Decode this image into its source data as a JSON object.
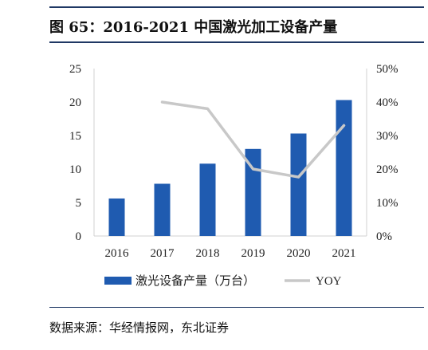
{
  "figure": {
    "title": "图 65：2016-2021 中国激光加工设备产量",
    "source": "数据来源：华经情报网，东北证券"
  },
  "colors": {
    "bar": "#1f5bb0",
    "line": "#c8c8c8",
    "axis": "#d0d0d0",
    "rule": "#1f3864"
  },
  "chart_data": {
    "type": "bar",
    "categories": [
      "2016",
      "2017",
      "2018",
      "2019",
      "2020",
      "2021"
    ],
    "series": [
      {
        "name": "激光设备产量（万台）",
        "type": "bar",
        "axis": "left",
        "values": [
          5.6,
          7.8,
          10.8,
          13.0,
          15.3,
          20.3
        ]
      },
      {
        "name": "YOY",
        "type": "line",
        "axis": "right",
        "values": [
          null,
          40.0,
          38.0,
          20.0,
          17.6,
          33.0
        ]
      }
    ],
    "y_left": {
      "min": 0,
      "max": 25,
      "ticks": [
        "0",
        "5",
        "10",
        "15",
        "20",
        "25"
      ]
    },
    "y_right": {
      "min": 0,
      "max": 50,
      "ticks": [
        "0%",
        "10%",
        "20%",
        "30%",
        "40%",
        "50%"
      ]
    },
    "grid": false,
    "legend_position": "bottom"
  }
}
